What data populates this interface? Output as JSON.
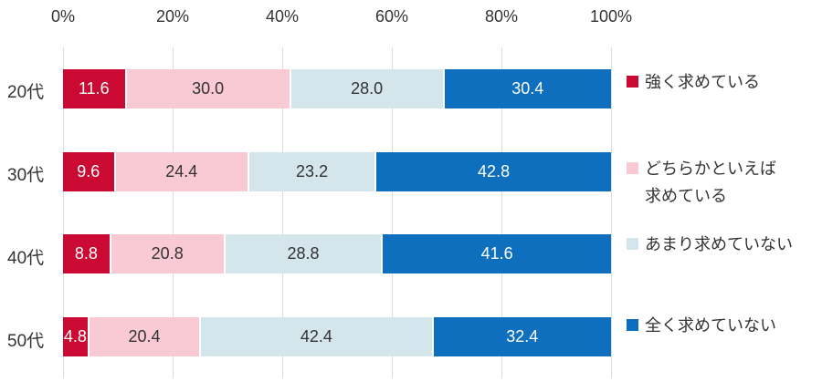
{
  "chart_data": {
    "type": "bar",
    "variant": "horizontal-stacked",
    "title": "",
    "xlabel": "",
    "ylabel": "",
    "categories": [
      "20代",
      "30代",
      "40代",
      "50代"
    ],
    "series": [
      {
        "name": "強く求めている",
        "color": "#cb0a33",
        "label_color": "#ffffff",
        "values": [
          11.6,
          9.6,
          8.8,
          4.8
        ]
      },
      {
        "name": "どちらかといえば求めている",
        "color": "#f9c9d4",
        "label_color": "#333333",
        "values": [
          30.0,
          24.4,
          20.8,
          20.4
        ]
      },
      {
        "name": "あまり求めていない",
        "color": "#d4e5ec",
        "label_color": "#333333",
        "values": [
          28.0,
          23.2,
          28.8,
          42.4
        ]
      },
      {
        "name": "全く求めていない",
        "color": "#0e6fbe",
        "label_color": "#ffffff",
        "values": [
          30.4,
          42.8,
          41.6,
          32.4
        ]
      }
    ],
    "x_axis": {
      "position": "top",
      "min": 0,
      "max": 100,
      "tick_labels": [
        "0%",
        "20%",
        "40%",
        "60%",
        "80%",
        "100%"
      ]
    },
    "grid": true,
    "gridline_color": "#dcdcdc",
    "legend_position": "right",
    "legend": {
      "items": [
        {
          "lines": [
            "強く求めている"
          ],
          "color": "#cb0a33"
        },
        {
          "lines": [
            "どちらかといえば",
            "求めている"
          ],
          "color": "#f9c9d4"
        },
        {
          "lines": [
            "あまり求めていない"
          ],
          "color": "#d4e5ec"
        },
        {
          "lines": [
            "全く求めていない"
          ],
          "color": "#0e6fbe"
        }
      ]
    },
    "value_label_format": "one-decimal"
  }
}
